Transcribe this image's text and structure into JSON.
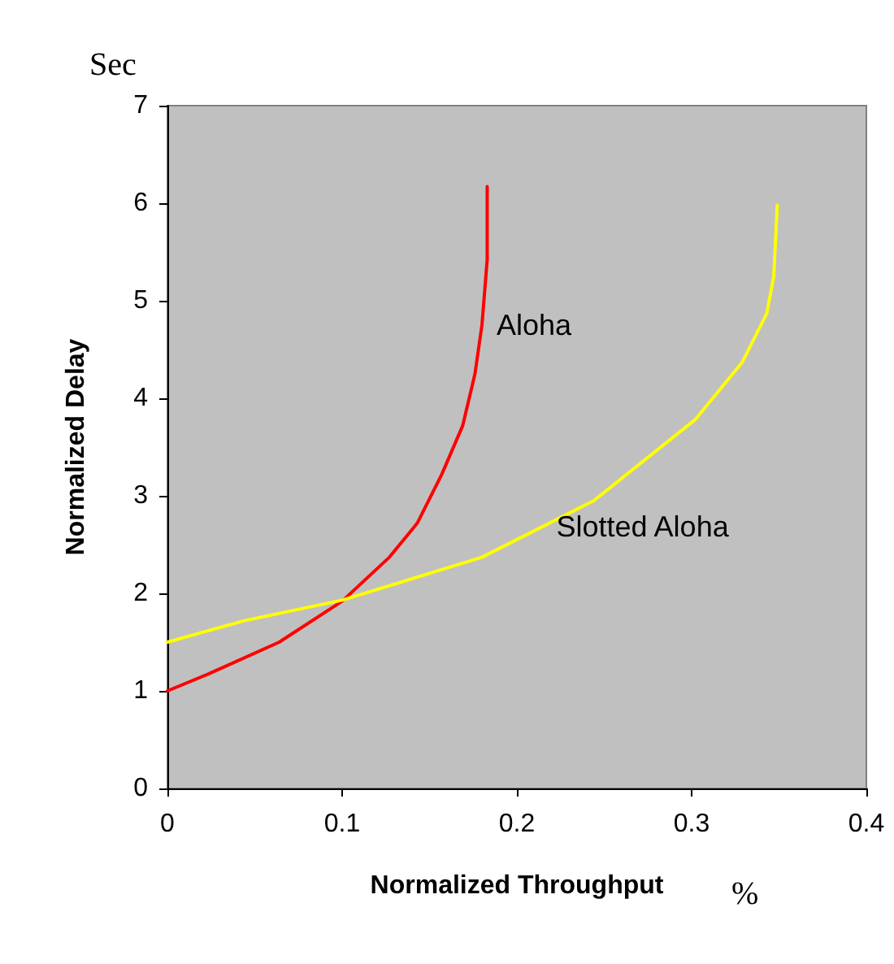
{
  "chart_data": {
    "type": "line",
    "xlabel": "Normalized Throughput",
    "ylabel": "Normalized Delay",
    "annotations": [
      "Sec",
      "%"
    ],
    "xlim": [
      0,
      0.4
    ],
    "xticks": [
      0,
      0.1,
      0.2,
      0.3,
      0.4
    ],
    "ylim": [
      0,
      7
    ],
    "yticks": [
      0,
      1,
      2,
      3,
      4,
      5,
      6,
      7
    ],
    "grid": false,
    "legend": false,
    "marker": "none",
    "line_style": "solid",
    "series": [
      {
        "name": "Aloha",
        "color": "#ff0000",
        "x": [
          0,
          0.023,
          0.064,
          0.1,
          0.127,
          0.143,
          0.157,
          0.169,
          0.176,
          0.18,
          0.183,
          0.183
        ],
        "values": [
          1.0,
          1.17,
          1.5,
          1.92,
          2.37,
          2.72,
          3.22,
          3.72,
          4.25,
          4.75,
          5.42,
          6.17
        ]
      },
      {
        "name": "Slotted Aloha",
        "color": "#ffff00",
        "x": [
          0,
          0.044,
          0.1,
          0.18,
          0.244,
          0.302,
          0.329,
          0.343,
          0.347,
          0.349
        ],
        "values": [
          1.5,
          1.72,
          1.93,
          2.37,
          2.95,
          3.78,
          4.37,
          4.87,
          5.25,
          5.98
        ]
      }
    ]
  }
}
